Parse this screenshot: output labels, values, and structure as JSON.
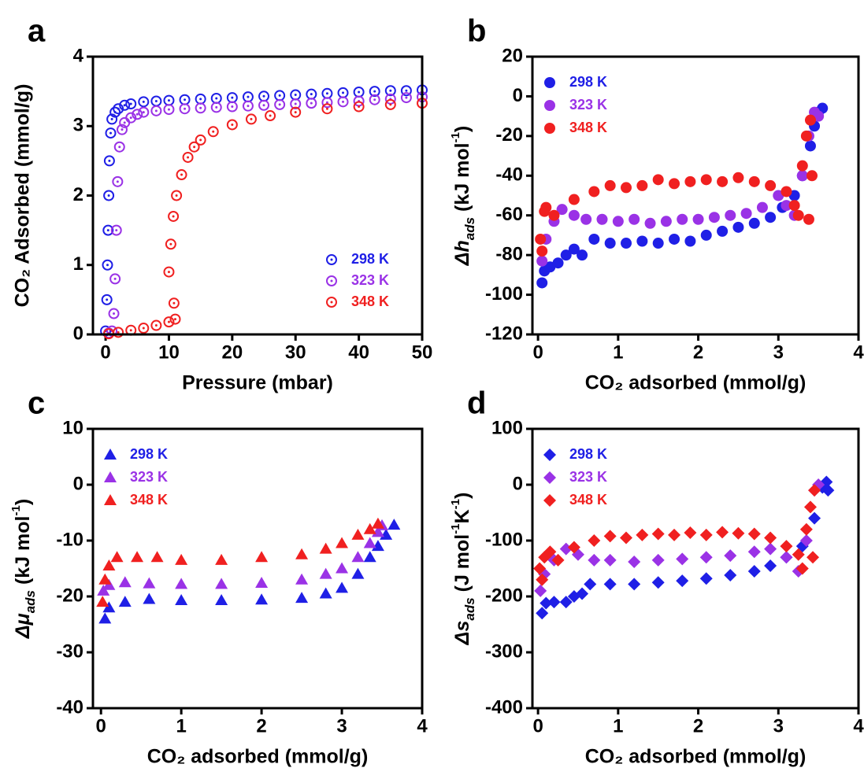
{
  "chart_data": [
    {
      "type": "scatter",
      "panel": "a",
      "marker": "circle-open",
      "legend": "lower right",
      "xlabel": "Pressure (mbar)",
      "ylabel": "CO₂ Adsorbed (mmol/g)",
      "xlim": [
        -2,
        50
      ],
      "ylim": [
        0,
        4
      ],
      "xticks": [
        0,
        10,
        20,
        30,
        40,
        50
      ],
      "yticks": [
        0,
        1,
        2,
        3,
        4
      ],
      "series": [
        {
          "name": "298 K",
          "color": "#1f1fe6",
          "x": [
            0,
            0.2,
            0.3,
            0.4,
            0.5,
            0.6,
            0.8,
            1,
            1.5,
            2,
            3,
            4,
            6,
            8,
            10,
            12.5,
            15,
            17.5,
            20,
            22.5,
            25,
            27.5,
            30,
            32.5,
            35,
            37.5,
            40,
            42.5,
            45,
            47.5,
            50
          ],
          "values": [
            0.05,
            0.5,
            1,
            1.5,
            2,
            2.5,
            2.9,
            3.1,
            3.2,
            3.25,
            3.3,
            3.32,
            3.35,
            3.36,
            3.37,
            3.38,
            3.39,
            3.4,
            3.41,
            3.42,
            3.43,
            3.44,
            3.45,
            3.46,
            3.47,
            3.48,
            3.49,
            3.5,
            3.51,
            3.51,
            3.52
          ]
        },
        {
          "name": "323 K",
          "color": "#9a32e6",
          "x": [
            0.5,
            1,
            1.3,
            1.5,
            1.7,
            1.9,
            2.2,
            2.6,
            3,
            4,
            5,
            6,
            8,
            10,
            12.5,
            15,
            17.5,
            20,
            22.5,
            25,
            27.5,
            30,
            32.5,
            35,
            37.5,
            40,
            42.5,
            45,
            47.5,
            50
          ],
          "values": [
            0.02,
            0.05,
            0.3,
            0.8,
            1.5,
            2.2,
            2.7,
            2.95,
            3.05,
            3.12,
            3.17,
            3.2,
            3.22,
            3.24,
            3.25,
            3.26,
            3.27,
            3.28,
            3.29,
            3.3,
            3.31,
            3.32,
            3.33,
            3.34,
            3.35,
            3.36,
            3.38,
            3.39,
            3.41,
            3.42
          ]
        },
        {
          "name": "348 K",
          "color": "#f02020",
          "x": [
            0.5,
            2,
            4,
            6,
            8,
            10,
            11,
            10.8,
            10,
            10.3,
            10.7,
            11.2,
            12,
            13,
            14,
            15,
            17,
            20,
            23,
            26,
            30,
            35,
            40,
            45,
            50
          ],
          "values": [
            0.01,
            0.03,
            0.06,
            0.09,
            0.13,
            0.18,
            0.22,
            0.45,
            0.9,
            1.3,
            1.7,
            2.0,
            2.3,
            2.55,
            2.7,
            2.8,
            2.92,
            3.02,
            3.1,
            3.15,
            3.2,
            3.25,
            3.28,
            3.31,
            3.33
          ]
        }
      ]
    },
    {
      "type": "scatter",
      "panel": "b",
      "marker": "circle",
      "legend": "upper left",
      "xlabel": "CO₂ adsorbed (mmol/g)",
      "ylabel": [
        {
          "text": "Δh"
        },
        {
          "text": "ads",
          "sub": true
        },
        {
          "text": " (kJ mol"
        },
        {
          "text": "-1",
          "sup": true
        },
        {
          "text": ")"
        }
      ],
      "xlim": [
        -0.07,
        4
      ],
      "ylim": [
        -120,
        20
      ],
      "xticks": [
        0,
        1,
        2,
        3,
        4
      ],
      "yticks": [
        -120,
        -100,
        -80,
        -60,
        -40,
        -20,
        0,
        20
      ],
      "series": [
        {
          "name": "298 K",
          "color": "#1f1fe6",
          "x": [
            0.05,
            0.08,
            0.15,
            0.25,
            0.35,
            0.45,
            0.55,
            0.7,
            0.9,
            1.1,
            1.3,
            1.5,
            1.7,
            1.9,
            2.1,
            2.3,
            2.5,
            2.7,
            2.9,
            3.05,
            3.2,
            3.3,
            3.4,
            3.45,
            3.5,
            3.55
          ],
          "values": [
            -94,
            -88,
            -86,
            -84,
            -80,
            -77,
            -80,
            -72,
            -74,
            -74,
            -73,
            -74,
            -72,
            -73,
            -70,
            -68,
            -66,
            -64,
            -61,
            -56,
            -50,
            -40,
            -25,
            -15,
            -8,
            -6
          ]
        },
        {
          "name": "323 K",
          "color": "#9a32e6",
          "x": [
            0.05,
            0.1,
            0.2,
            0.3,
            0.45,
            0.6,
            0.8,
            1,
            1.2,
            1.4,
            1.6,
            1.8,
            2,
            2.2,
            2.4,
            2.6,
            2.8,
            3,
            3.1,
            3.2,
            3.3,
            3.38,
            3.45,
            3.5
          ],
          "values": [
            -83,
            -72,
            -63,
            -57,
            -60,
            -62,
            -62,
            -63,
            -62,
            -64,
            -63,
            -62,
            -62,
            -61,
            -60,
            -59,
            -56,
            -50,
            -55,
            -60,
            -40,
            -20,
            -8,
            -10
          ]
        },
        {
          "name": "348 K",
          "color": "#f02020",
          "x": [
            0.03,
            0.05,
            0.08,
            0.1,
            0.2,
            0.45,
            0.7,
            0.9,
            1.1,
            1.3,
            1.5,
            1.7,
            1.9,
            2.1,
            2.3,
            2.5,
            2.7,
            2.9,
            3.1,
            3.2,
            3.25,
            3.3,
            3.35,
            3.4,
            3.42,
            3.38
          ],
          "values": [
            -72,
            -78,
            -58,
            -56,
            -60,
            -52,
            -48,
            -45,
            -46,
            -45,
            -42,
            -44,
            -43,
            -42,
            -43,
            -41,
            -43,
            -45,
            -48,
            -55,
            -60,
            -35,
            -20,
            -12,
            -40,
            -62
          ]
        }
      ]
    },
    {
      "type": "scatter",
      "panel": "c",
      "marker": "triangle",
      "legend": "upper left",
      "xlabel": "CO₂ adsorbed (mmol/g)",
      "ylabel": [
        {
          "text": "Δμ"
        },
        {
          "text": "ads",
          "sub": true
        },
        {
          "text": " (kJ mol"
        },
        {
          "text": "-1",
          "sup": true
        },
        {
          "text": ")"
        }
      ],
      "xlim": [
        -0.1,
        4
      ],
      "ylim": [
        -40,
        10
      ],
      "xticks": [
        0,
        1,
        2,
        3,
        4
      ],
      "yticks": [
        -40,
        -30,
        -20,
        -10,
        0,
        10
      ],
      "series": [
        {
          "name": "298 K",
          "color": "#1f1fe6",
          "x": [
            0.05,
            0.1,
            0.3,
            0.6,
            1,
            1.5,
            2,
            2.5,
            2.8,
            3.0,
            3.2,
            3.35,
            3.45,
            3.55,
            3.65
          ],
          "values": [
            -24,
            -22,
            -21,
            -20.5,
            -20.7,
            -20.7,
            -20.6,
            -20.3,
            -19.5,
            -18.5,
            -16,
            -13,
            -11,
            -9,
            -7.2
          ]
        },
        {
          "name": "323 K",
          "color": "#9a32e6",
          "x": [
            0.03,
            0.1,
            0.3,
            0.6,
            1,
            1.5,
            2,
            2.5,
            2.8,
            3.0,
            3.2,
            3.35,
            3.45,
            3.5
          ],
          "values": [
            -19,
            -18,
            -17.5,
            -17.7,
            -17.8,
            -17.8,
            -17.6,
            -17,
            -16,
            -15,
            -13,
            -10.5,
            -8.5,
            -7.3
          ]
        },
        {
          "name": "348 K",
          "color": "#f02020",
          "x": [
            0.02,
            0.05,
            0.1,
            0.2,
            0.45,
            0.7,
            1,
            1.5,
            2,
            2.5,
            2.8,
            3.0,
            3.2,
            3.35,
            3.45
          ],
          "values": [
            -21,
            -17,
            -14.5,
            -13,
            -13,
            -13,
            -13.5,
            -13.5,
            -13,
            -12.5,
            -11.5,
            -10.5,
            -9,
            -8,
            -7
          ]
        }
      ]
    },
    {
      "type": "scatter",
      "panel": "d",
      "marker": "diamond",
      "legend": "upper left",
      "xlabel": "CO₂ adsorbed (mmol/g)",
      "ylabel": [
        {
          "text": "Δs"
        },
        {
          "text": "ads",
          "sub": true
        },
        {
          "text": " (J mol"
        },
        {
          "text": "-1",
          "sup": true
        },
        {
          "text": "K"
        },
        {
          "text": "-1",
          "sup": true
        },
        {
          "text": ")"
        }
      ],
      "xlim": [
        -0.07,
        4
      ],
      "ylim": [
        -400,
        100
      ],
      "xticks": [
        0,
        1,
        2,
        3,
        4
      ],
      "yticks": [
        -400,
        -300,
        -200,
        -100,
        0,
        100
      ],
      "series": [
        {
          "name": "298 K",
          "color": "#1f1fe6",
          "x": [
            0.05,
            0.1,
            0.2,
            0.35,
            0.45,
            0.55,
            0.65,
            0.9,
            1.2,
            1.5,
            1.8,
            2.1,
            2.4,
            2.7,
            2.9,
            3.1,
            3.3,
            3.45,
            3.55,
            3.6,
            3.62
          ],
          "values": [
            -230,
            -212,
            -210,
            -210,
            -200,
            -195,
            -178,
            -178,
            -178,
            -175,
            -172,
            -168,
            -162,
            -155,
            -145,
            -130,
            -110,
            -60,
            -5,
            5,
            -10
          ]
        },
        {
          "name": "323 K",
          "color": "#9a32e6",
          "x": [
            0.03,
            0.08,
            0.2,
            0.35,
            0.5,
            0.7,
            0.9,
            1.2,
            1.5,
            1.8,
            2.1,
            2.4,
            2.7,
            2.9,
            3.1,
            3.25,
            3.35,
            3.45,
            3.5
          ],
          "values": [
            -190,
            -160,
            -135,
            -115,
            -125,
            -135,
            -135,
            -138,
            -135,
            -133,
            -130,
            -127,
            -120,
            -115,
            -130,
            -155,
            -100,
            -10,
            0
          ]
        },
        {
          "name": "348 K",
          "color": "#f02020",
          "x": [
            0.02,
            0.05,
            0.08,
            0.15,
            0.25,
            0.45,
            0.7,
            0.9,
            1.1,
            1.3,
            1.5,
            1.7,
            1.9,
            2.1,
            2.3,
            2.5,
            2.7,
            2.9,
            3.1,
            3.25,
            3.3,
            3.35,
            3.4,
            3.45,
            3.43
          ],
          "values": [
            -150,
            -170,
            -130,
            -120,
            -135,
            -112,
            -100,
            -92,
            -95,
            -90,
            -88,
            -90,
            -86,
            -90,
            -85,
            -87,
            -88,
            -95,
            -110,
            -125,
            -150,
            -80,
            -40,
            -10,
            -130
          ]
        }
      ]
    }
  ]
}
